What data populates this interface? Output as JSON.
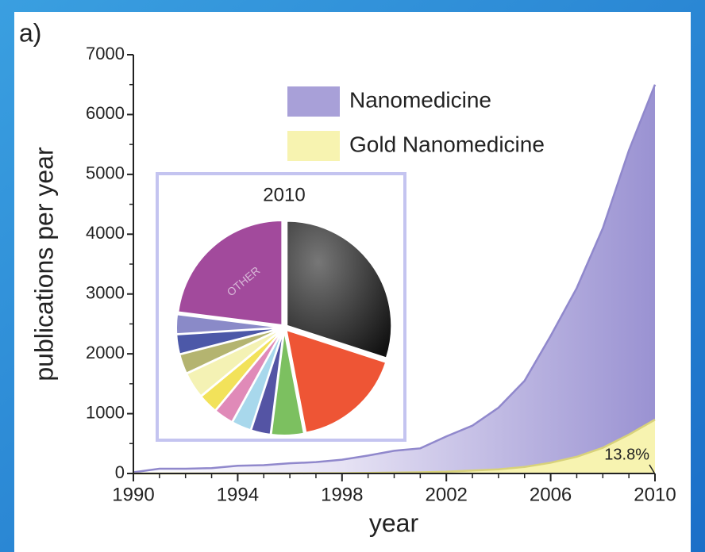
{
  "chart_data": [
    {
      "type": "area",
      "panel_label": "a)",
      "x_label": "year",
      "y_label": "publications per year",
      "annotation": "13.8%",
      "x": [
        1990,
        1991,
        1992,
        1993,
        1994,
        1995,
        1996,
        1997,
        1998,
        1999,
        2000,
        2001,
        2002,
        2003,
        2004,
        2005,
        2006,
        2007,
        2008,
        2009,
        2010
      ],
      "series": [
        {
          "name": "Nanomedicine",
          "color": "#9088cc",
          "values": [
            20,
            80,
            80,
            90,
            130,
            140,
            170,
            190,
            230,
            300,
            380,
            420,
            620,
            800,
            1100,
            1550,
            2300,
            3100,
            4100,
            5400,
            6500
          ]
        },
        {
          "name": "Gold Nanomedicine",
          "color": "#f7f3b0",
          "values": [
            0,
            0,
            0,
            0,
            0,
            0,
            0,
            5,
            5,
            10,
            15,
            20,
            30,
            50,
            70,
            110,
            180,
            280,
            430,
            650,
            900
          ]
        }
      ],
      "xlim": [
        1990,
        2010
      ],
      "xticks": [
        1990,
        1994,
        1998,
        2002,
        2006,
        2010
      ],
      "ylim": [
        0,
        7000
      ],
      "yticks": [
        0,
        1000,
        2000,
        3000,
        4000,
        5000,
        6000,
        7000
      ]
    },
    {
      "type": "pie",
      "title": "2010",
      "categories": [
        null,
        null,
        null,
        null,
        null,
        null,
        null,
        null,
        null,
        null,
        null,
        "OTHER"
      ],
      "values": [
        30,
        17,
        5,
        3,
        3,
        3,
        3,
        4,
        3,
        3,
        3,
        23
      ],
      "colors": [
        "#2e2e2e",
        "#ee5535",
        "#7cc060",
        "#5454a4",
        "#a8d8ec",
        "#e08ab8",
        "#f2e25a",
        "#f4f2b4",
        "#b4b470",
        "#4c58a8",
        "#8a8ac8",
        "#a24a9c"
      ]
    }
  ]
}
